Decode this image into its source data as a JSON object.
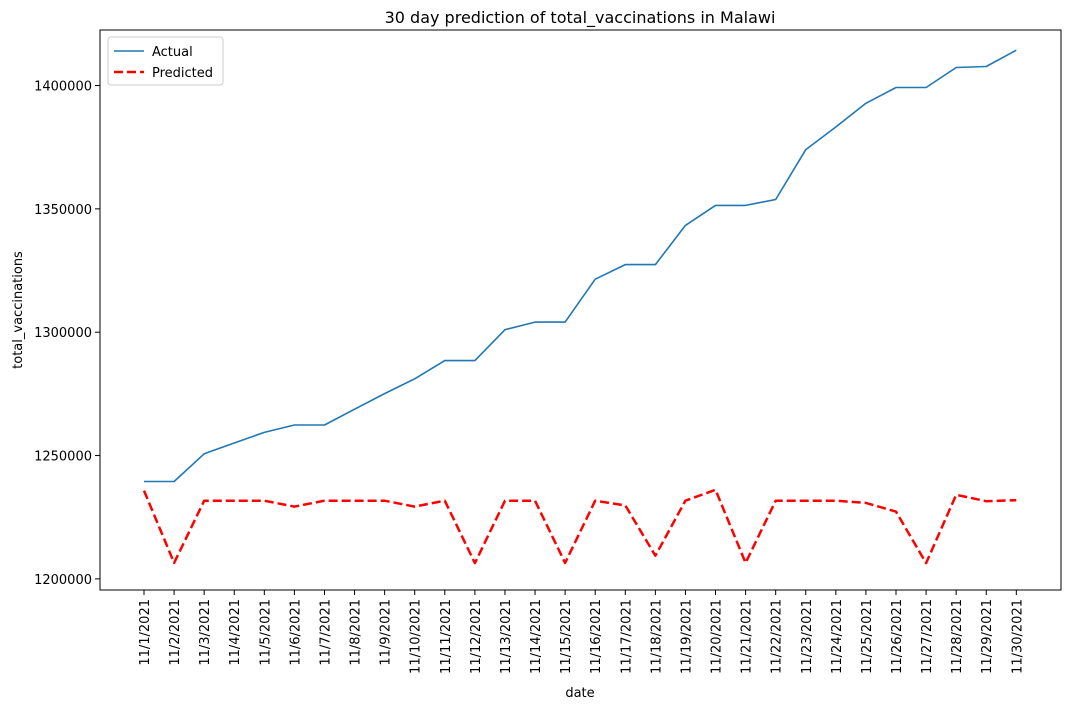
{
  "chart_data": {
    "type": "line",
    "title": "30 day prediction of total_vaccinations in Malawi",
    "xlabel": "date",
    "ylabel": "total_vaccinations",
    "categories": [
      "11/1/2021",
      "11/2/2021",
      "11/3/2021",
      "11/4/2021",
      "11/5/2021",
      "11/6/2021",
      "11/7/2021",
      "11/8/2021",
      "11/9/2021",
      "11/10/2021",
      "11/11/2021",
      "11/12/2021",
      "11/13/2021",
      "11/14/2021",
      "11/15/2021",
      "11/16/2021",
      "11/17/2021",
      "11/18/2021",
      "11/19/2021",
      "11/20/2021",
      "11/21/2021",
      "11/22/2021",
      "11/23/2021",
      "11/24/2021",
      "11/25/2021",
      "11/26/2021",
      "11/27/2021",
      "11/28/2021",
      "11/29/2021",
      "11/30/2021"
    ],
    "y_ticks": [
      1200000,
      1250000,
      1300000,
      1350000,
      1400000
    ],
    "ylim": [
      1195500,
      1422500
    ],
    "grid": false,
    "legend_position": "top-left",
    "series": [
      {
        "name": "Actual",
        "color": "#1f77b4",
        "style": "solid",
        "values": [
          1239500,
          1239500,
          1250700,
          1255100,
          1259400,
          1262400,
          1262400,
          1268800,
          1275100,
          1281100,
          1288500,
          1288500,
          1301000,
          1304100,
          1304100,
          1321500,
          1327400,
          1327400,
          1343300,
          1351400,
          1351400,
          1353800,
          1374000,
          1383200,
          1392800,
          1399200,
          1399200,
          1407300,
          1407700,
          1414300
        ]
      },
      {
        "name": "Predicted",
        "color": "#ff0000",
        "style": "dashed",
        "values": [
          1235800,
          1206500,
          1231700,
          1231700,
          1231700,
          1229300,
          1231700,
          1231700,
          1231700,
          1229300,
          1231700,
          1206400,
          1231700,
          1231700,
          1206500,
          1231700,
          1229800,
          1209400,
          1231700,
          1236100,
          1206500,
          1231700,
          1231700,
          1231700,
          1230800,
          1227300,
          1206400,
          1234100,
          1231500,
          1231900
        ]
      }
    ]
  }
}
